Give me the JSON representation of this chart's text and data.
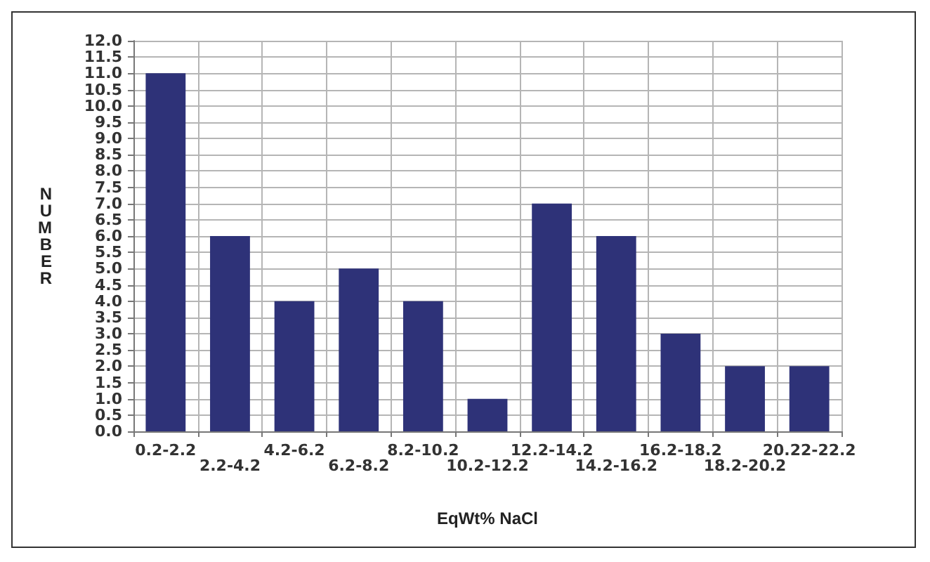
{
  "chart_data": {
    "type": "bar",
    "xlabel": "EqWt% NaCl",
    "ylabel": "NUMBER",
    "categories": [
      "0.2-2.2",
      "2.2-4.2",
      "4.2-6.2",
      "6.2-8.2",
      "8.2-10.2",
      "10.2-12.2",
      "12.2-14.2",
      "14.2-16.2",
      "16.2-18.2",
      "18.2-20.2",
      "20.22-22.2"
    ],
    "values": [
      11,
      6,
      4,
      5,
      4,
      1,
      7,
      6,
      3,
      2,
      2
    ],
    "color": "#2e3278",
    "ylim": [
      0,
      12
    ],
    "yticks": [
      {
        "value": 0,
        "label": "0.0"
      },
      {
        "value": 0.5,
        "label": "0.5"
      },
      {
        "value": 1,
        "label": "1.0"
      },
      {
        "value": 1.5,
        "label": "1.5"
      },
      {
        "value": 2,
        "label": "2.0"
      },
      {
        "value": 2.5,
        "label": "2.5"
      },
      {
        "value": 3,
        "label": "3.0"
      },
      {
        "value": 3.5,
        "label": "3.5"
      },
      {
        "value": 4,
        "label": "4.0"
      },
      {
        "value": 4.5,
        "label": "4.5"
      },
      {
        "value": 5,
        "label": "5.0"
      },
      {
        "value": 5.5,
        "label": "5.5"
      },
      {
        "value": 6,
        "label": "6.0"
      },
      {
        "value": 6.5,
        "label": "6.5"
      },
      {
        "value": 7,
        "label": "7.0"
      },
      {
        "value": 7.5,
        "label": "7.5"
      },
      {
        "value": 8,
        "label": "8.0"
      },
      {
        "value": 8.5,
        "label": "8.5"
      },
      {
        "value": 9,
        "label": "9.0"
      },
      {
        "value": 9.5,
        "label": "9.5"
      },
      {
        "value": 10,
        "label": "10.0"
      },
      {
        "value": 10.5,
        "label": "10.5"
      },
      {
        "value": 11,
        "label": "11.0"
      },
      {
        "value": 11.5,
        "label": "11.5"
      },
      {
        "value": 12,
        "label": "12.0"
      }
    ],
    "grid": true
  }
}
